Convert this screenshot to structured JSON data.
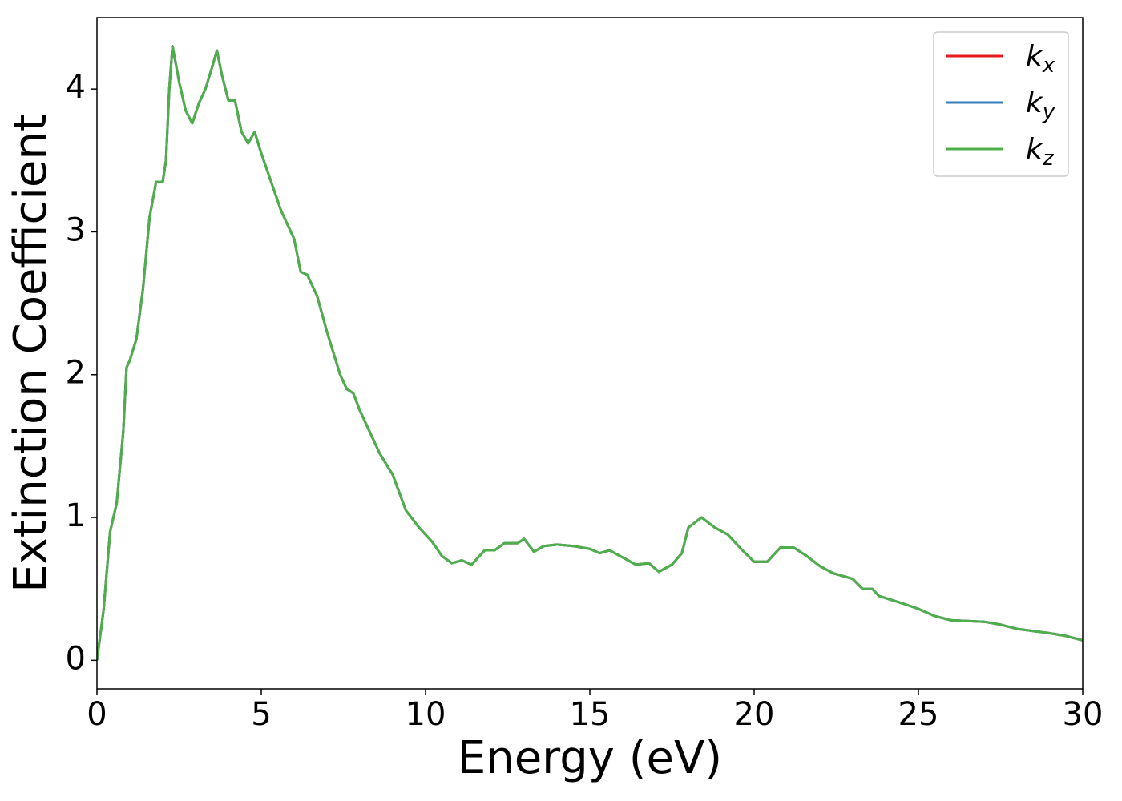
{
  "chart_data": {
    "type": "line",
    "xlabel": "Energy (eV)",
    "ylabel": "Extinction Coefficient",
    "x": [
      0,
      0.2,
      0.4,
      0.6,
      0.8,
      0.9,
      1.0,
      1.2,
      1.4,
      1.6,
      1.8,
      2.0,
      2.1,
      2.2,
      2.3,
      2.5,
      2.7,
      2.9,
      3.1,
      3.3,
      3.5,
      3.65,
      3.8,
      4.0,
      4.2,
      4.4,
      4.6,
      4.8,
      5.0,
      5.3,
      5.6,
      6.0,
      6.2,
      6.4,
      6.7,
      7.0,
      7.4,
      7.6,
      7.8,
      8.0,
      8.3,
      8.6,
      9.0,
      9.4,
      9.8,
      10.2,
      10.5,
      10.8,
      11.1,
      11.4,
      11.8,
      12.1,
      12.4,
      12.8,
      13.0,
      13.3,
      13.6,
      14.0,
      14.5,
      15.0,
      15.3,
      15.6,
      16.0,
      16.4,
      16.8,
      17.1,
      17.5,
      17.8,
      18.0,
      18.4,
      18.8,
      19.2,
      19.6,
      20.0,
      20.4,
      20.8,
      21.2,
      21.6,
      22.0,
      22.4,
      23.0,
      23.3,
      23.6,
      23.8,
      24.5,
      25.0,
      25.5,
      26.0,
      27.0,
      27.5,
      28.0,
      29.0,
      29.5,
      30.0
    ],
    "series": [
      {
        "name": "kx",
        "color": "#e41a1c",
        "values": [
          0,
          0.35,
          0.9,
          1.1,
          1.6,
          2.05,
          2.1,
          2.25,
          2.6,
          3.1,
          3.35,
          3.35,
          3.5,
          4.0,
          4.3,
          4.05,
          3.85,
          3.76,
          3.9,
          4.0,
          4.15,
          4.27,
          4.1,
          3.92,
          3.92,
          3.7,
          3.62,
          3.7,
          3.55,
          3.35,
          3.15,
          2.95,
          2.72,
          2.7,
          2.55,
          2.3,
          2.0,
          1.9,
          1.87,
          1.75,
          1.6,
          1.45,
          1.3,
          1.05,
          0.93,
          0.83,
          0.73,
          0.68,
          0.7,
          0.67,
          0.77,
          0.77,
          0.82,
          0.82,
          0.85,
          0.76,
          0.8,
          0.81,
          0.8,
          0.78,
          0.75,
          0.77,
          0.72,
          0.67,
          0.68,
          0.62,
          0.67,
          0.75,
          0.93,
          1.0,
          0.93,
          0.88,
          0.78,
          0.69,
          0.69,
          0.79,
          0.79,
          0.73,
          0.66,
          0.61,
          0.57,
          0.5,
          0.5,
          0.45,
          0.4,
          0.36,
          0.31,
          0.28,
          0.27,
          0.25,
          0.22,
          0.19,
          0.17,
          0.14
        ]
      },
      {
        "name": "ky",
        "color": "#377eb8",
        "values": [
          0,
          0.35,
          0.9,
          1.1,
          1.6,
          2.05,
          2.1,
          2.25,
          2.6,
          3.1,
          3.35,
          3.35,
          3.5,
          4.0,
          4.3,
          4.05,
          3.85,
          3.76,
          3.9,
          4.0,
          4.15,
          4.27,
          4.1,
          3.92,
          3.92,
          3.7,
          3.62,
          3.7,
          3.55,
          3.35,
          3.15,
          2.95,
          2.72,
          2.7,
          2.55,
          2.3,
          2.0,
          1.9,
          1.87,
          1.75,
          1.6,
          1.45,
          1.3,
          1.05,
          0.93,
          0.83,
          0.73,
          0.68,
          0.7,
          0.67,
          0.77,
          0.77,
          0.82,
          0.82,
          0.85,
          0.76,
          0.8,
          0.81,
          0.8,
          0.78,
          0.75,
          0.77,
          0.72,
          0.67,
          0.68,
          0.62,
          0.67,
          0.75,
          0.93,
          1.0,
          0.93,
          0.88,
          0.78,
          0.69,
          0.69,
          0.79,
          0.79,
          0.73,
          0.66,
          0.61,
          0.57,
          0.5,
          0.5,
          0.45,
          0.4,
          0.36,
          0.31,
          0.28,
          0.27,
          0.25,
          0.22,
          0.19,
          0.17,
          0.14
        ]
      },
      {
        "name": "kz",
        "color": "#4daf4a",
        "values": [
          0,
          0.35,
          0.9,
          1.1,
          1.6,
          2.05,
          2.1,
          2.25,
          2.6,
          3.1,
          3.35,
          3.35,
          3.5,
          4.0,
          4.3,
          4.05,
          3.85,
          3.76,
          3.9,
          4.0,
          4.15,
          4.27,
          4.1,
          3.92,
          3.92,
          3.7,
          3.62,
          3.7,
          3.55,
          3.35,
          3.15,
          2.95,
          2.72,
          2.7,
          2.55,
          2.3,
          2.0,
          1.9,
          1.87,
          1.75,
          1.6,
          1.45,
          1.3,
          1.05,
          0.93,
          0.83,
          0.73,
          0.68,
          0.7,
          0.67,
          0.77,
          0.77,
          0.82,
          0.82,
          0.85,
          0.76,
          0.8,
          0.81,
          0.8,
          0.78,
          0.75,
          0.77,
          0.72,
          0.67,
          0.68,
          0.62,
          0.67,
          0.75,
          0.93,
          1.0,
          0.93,
          0.88,
          0.78,
          0.69,
          0.69,
          0.79,
          0.79,
          0.73,
          0.66,
          0.61,
          0.57,
          0.5,
          0.5,
          0.45,
          0.4,
          0.36,
          0.31,
          0.28,
          0.27,
          0.25,
          0.22,
          0.19,
          0.17,
          0.14
        ]
      }
    ],
    "xlim": [
      0,
      30
    ],
    "xticks": [
      0,
      5,
      10,
      15,
      20,
      25,
      30
    ],
    "ylim": [
      -0.2,
      4.5
    ],
    "yticks": [
      0,
      1,
      2,
      3,
      4
    ],
    "grid": false,
    "legend": "upper right"
  }
}
